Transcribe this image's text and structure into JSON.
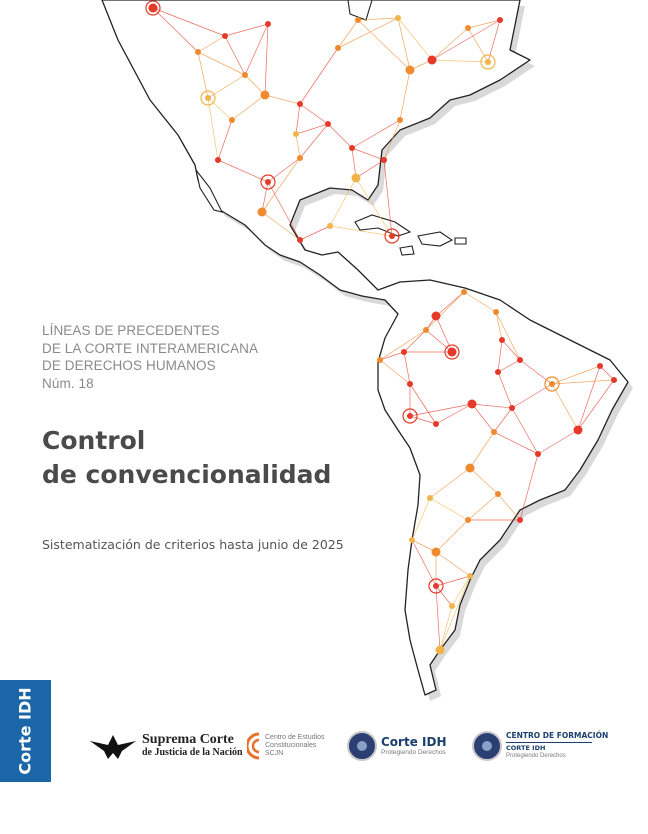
{
  "series": {
    "line1": "LÍNEAS DE PRECEDENTES",
    "line2": "DE LA CORTE INTERAMERICANA",
    "line3": "DE DERECHOS HUMANOS",
    "number": "Núm. 18"
  },
  "title": {
    "line1": "Control",
    "line2": "de convencionalidad"
  },
  "subtitle": "Sistematización de criterios hasta junio de 2025",
  "side_tab": "Corte IDH",
  "colors": {
    "title": "#4a4a4a",
    "series": "#8a8a8a",
    "tab": "#1b66a6",
    "node_red": "#e53a2a",
    "node_orange": "#f08a2e",
    "node_yellow": "#f2b44a",
    "logo_blue": "#1b3f6e"
  },
  "logos": {
    "scjn": {
      "line1": "Suprema Corte",
      "line2": "de Justicia de la Nación",
      "icon": "eagle-emblem-icon"
    },
    "cec": {
      "line1": "Centro de Estudios",
      "line2": "Constitucionales",
      "line3": "SCJN",
      "icon": "cec-mark-icon"
    },
    "cidh": {
      "line1": "Corte IDH",
      "line2": "Protegiendo Derechos",
      "icon": "court-seal-icon"
    },
    "cf": {
      "line1": "CENTRO DE FORMACIÓN",
      "line2": "CORTE IDH",
      "line3": "Protegiendo Derechos",
      "icon": "court-seal-icon"
    }
  }
}
